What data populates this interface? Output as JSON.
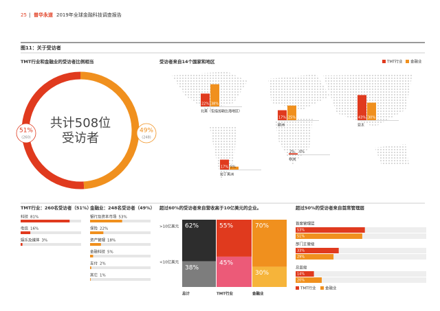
{
  "header": {
    "page": "25",
    "separator": "|",
    "brand": "普华永道",
    "report": "2019年全球金融科技调查报告"
  },
  "figure_title": "图11：关于受访者",
  "chart_data": [
    {
      "type": "pie",
      "title": "TMT行业和金融业的受访者比例相当",
      "center_text": [
        "共计508位",
        "受访者"
      ],
      "values": [
        51,
        49
      ],
      "value_labels": [
        "51%",
        "49%"
      ],
      "counts": [
        260,
        248
      ],
      "count_labels": [
        "(260)",
        "(248)"
      ],
      "colors": [
        "#e03a1e",
        "#f0901e"
      ]
    },
    {
      "type": "bar",
      "title": "受访者来自14个国家和地区",
      "legend": "top-right",
      "categories": [
        "北美（包括加勒比海地区）",
        "欧洲",
        "亚太",
        "非洲",
        "拉丁美洲"
      ],
      "series": [
        {
          "name": "TMT行业",
          "color": "#e03a1e",
          "values": [
            22,
            17,
            43,
            2,
            17
          ],
          "value_labels": [
            "22%",
            "17%",
            "43%",
            "2%",
            "17%"
          ]
        },
        {
          "name": "金融业",
          "color": "#f0901e",
          "values": [
            38,
            25,
            30,
            0,
            5
          ],
          "value_labels": [
            "38%",
            "25%",
            "30%",
            "0%",
            "5%"
          ]
        }
      ]
    },
    {
      "type": "barh",
      "title": "TMT行业：260名受访者（51%）",
      "color": "#e03a1e",
      "categories": [
        "科技",
        "电信",
        "娱乐及媒体"
      ],
      "values": [
        81,
        16,
        3
      ],
      "value_labels": [
        "81%",
        "16%",
        "3%"
      ]
    },
    {
      "type": "barh",
      "title": "金融业：248名受访者（49%）",
      "color": "#f0901e",
      "categories": [
        "银行及资本市场",
        "保险",
        "资产管理",
        "金融科技",
        "支付",
        "其它"
      ],
      "values": [
        53,
        22,
        18,
        5,
        2,
        1
      ],
      "value_labels": [
        "53%",
        "22%",
        "18%",
        "5%",
        "2%",
        "1%"
      ]
    },
    {
      "type": "mekko",
      "title": "超过60%的受访者来自营收高于10亿美元的企业。",
      "categories": [
        "总计",
        "TMT行业",
        "金融业"
      ],
      "series": [
        {
          "name": ">10亿美元",
          "colors": [
            "#2d2d2d",
            "#e03a1e",
            "#f0901e"
          ],
          "values": [
            62,
            55,
            70
          ],
          "value_labels": [
            "62%",
            "55%",
            "70%"
          ]
        },
        {
          "name": "<10亿美元",
          "colors": [
            "#7d7d7d",
            "#ec5a78",
            "#f6b43a"
          ],
          "values": [
            38,
            45,
            30
          ],
          "value_labels": [
            "38%",
            "45%",
            "30%"
          ]
        }
      ]
    },
    {
      "type": "grouped-barh",
      "title": "超过50%的受访者来自首席管理层",
      "legend": "bottom",
      "categories": [
        "首席管理层",
        "部门主管级",
        "总监级"
      ],
      "series": [
        {
          "name": "TMT行业",
          "color": "#e03a1e",
          "values": [
            53,
            33,
            14
          ],
          "value_labels": [
            "53%",
            "33%",
            "14%"
          ]
        },
        {
          "name": "金融业",
          "color": "#f0901e",
          "values": [
            51,
            29,
            20
          ],
          "value_labels": [
            "51%",
            "29%",
            "20%"
          ]
        }
      ]
    }
  ]
}
